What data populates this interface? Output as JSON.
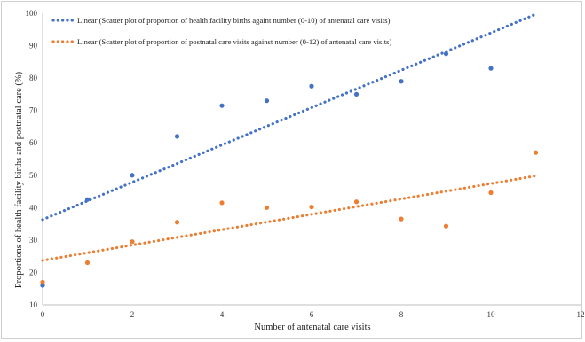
{
  "chart_data": {
    "type": "scatter",
    "title": "",
    "xlabel": "Number of antenatal care visits",
    "ylabel": "Proportions of health facility births and postnatal care (%)",
    "xlim": [
      0,
      12
    ],
    "ylim": [
      10,
      100
    ],
    "x_ticks": [
      "0",
      "2",
      "4",
      "6",
      "8",
      "10",
      "12"
    ],
    "y_ticks": [
      "10",
      "20",
      "30",
      "40",
      "50",
      "60",
      "70",
      "80",
      "90",
      "100"
    ],
    "grid": false,
    "legend_position": "top-left",
    "series": [
      {
        "key": "births",
        "color": "#4472C4",
        "x": [
          0,
          1,
          2,
          3,
          4,
          5,
          6,
          7,
          8,
          9,
          10
        ],
        "y": [
          16,
          42.5,
          50,
          62,
          71.5,
          73,
          77.5,
          75,
          79,
          87.5,
          83
        ],
        "trend_label": "Linear (Scatter plot of proportion of health facility births againt number (0-10) of antenatal care visits)",
        "trend": {
          "x": [
            0,
            11
          ],
          "y": [
            36.3,
            99.7
          ]
        }
      },
      {
        "key": "postnatal",
        "color": "#ED7D31",
        "x": [
          0,
          1,
          2,
          3,
          4,
          5,
          6,
          7,
          8,
          9,
          10,
          11
        ],
        "y": [
          17,
          23,
          29.5,
          35.5,
          41.5,
          40,
          40.2,
          41.8,
          36.5,
          34.3,
          44.6,
          57
        ],
        "trend_label": "Linear (Scatter plot of proportion of postnatal care visits against number (0-12) of antenatal care visits)",
        "trend": {
          "x": [
            0,
            11
          ],
          "y": [
            23.7,
            49.8
          ]
        }
      }
    ]
  }
}
